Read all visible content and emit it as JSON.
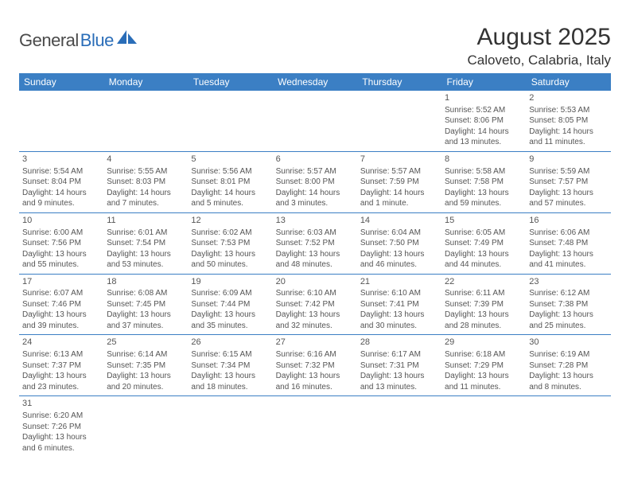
{
  "logo": {
    "text_general": "General",
    "text_blue": "Blue"
  },
  "header": {
    "month_title": "August 2025",
    "location": "Caloveto, Calabria, Italy"
  },
  "colors": {
    "header_bg": "#3b7fc4",
    "header_fg": "#ffffff",
    "rule": "#3b7fc4",
    "text": "#555555",
    "logo_gray": "#4a4a4a",
    "logo_blue": "#2a6db8"
  },
  "weekdays": [
    "Sunday",
    "Monday",
    "Tuesday",
    "Wednesday",
    "Thursday",
    "Friday",
    "Saturday"
  ],
  "weeks": [
    [
      null,
      null,
      null,
      null,
      null,
      {
        "d": "1",
        "sr": "Sunrise: 5:52 AM",
        "ss": "Sunset: 8:06 PM",
        "dl1": "Daylight: 14 hours",
        "dl2": "and 13 minutes."
      },
      {
        "d": "2",
        "sr": "Sunrise: 5:53 AM",
        "ss": "Sunset: 8:05 PM",
        "dl1": "Daylight: 14 hours",
        "dl2": "and 11 minutes."
      }
    ],
    [
      {
        "d": "3",
        "sr": "Sunrise: 5:54 AM",
        "ss": "Sunset: 8:04 PM",
        "dl1": "Daylight: 14 hours",
        "dl2": "and 9 minutes."
      },
      {
        "d": "4",
        "sr": "Sunrise: 5:55 AM",
        "ss": "Sunset: 8:03 PM",
        "dl1": "Daylight: 14 hours",
        "dl2": "and 7 minutes."
      },
      {
        "d": "5",
        "sr": "Sunrise: 5:56 AM",
        "ss": "Sunset: 8:01 PM",
        "dl1": "Daylight: 14 hours",
        "dl2": "and 5 minutes."
      },
      {
        "d": "6",
        "sr": "Sunrise: 5:57 AM",
        "ss": "Sunset: 8:00 PM",
        "dl1": "Daylight: 14 hours",
        "dl2": "and 3 minutes."
      },
      {
        "d": "7",
        "sr": "Sunrise: 5:57 AM",
        "ss": "Sunset: 7:59 PM",
        "dl1": "Daylight: 14 hours",
        "dl2": "and 1 minute."
      },
      {
        "d": "8",
        "sr": "Sunrise: 5:58 AM",
        "ss": "Sunset: 7:58 PM",
        "dl1": "Daylight: 13 hours",
        "dl2": "and 59 minutes."
      },
      {
        "d": "9",
        "sr": "Sunrise: 5:59 AM",
        "ss": "Sunset: 7:57 PM",
        "dl1": "Daylight: 13 hours",
        "dl2": "and 57 minutes."
      }
    ],
    [
      {
        "d": "10",
        "sr": "Sunrise: 6:00 AM",
        "ss": "Sunset: 7:56 PM",
        "dl1": "Daylight: 13 hours",
        "dl2": "and 55 minutes."
      },
      {
        "d": "11",
        "sr": "Sunrise: 6:01 AM",
        "ss": "Sunset: 7:54 PM",
        "dl1": "Daylight: 13 hours",
        "dl2": "and 53 minutes."
      },
      {
        "d": "12",
        "sr": "Sunrise: 6:02 AM",
        "ss": "Sunset: 7:53 PM",
        "dl1": "Daylight: 13 hours",
        "dl2": "and 50 minutes."
      },
      {
        "d": "13",
        "sr": "Sunrise: 6:03 AM",
        "ss": "Sunset: 7:52 PM",
        "dl1": "Daylight: 13 hours",
        "dl2": "and 48 minutes."
      },
      {
        "d": "14",
        "sr": "Sunrise: 6:04 AM",
        "ss": "Sunset: 7:50 PM",
        "dl1": "Daylight: 13 hours",
        "dl2": "and 46 minutes."
      },
      {
        "d": "15",
        "sr": "Sunrise: 6:05 AM",
        "ss": "Sunset: 7:49 PM",
        "dl1": "Daylight: 13 hours",
        "dl2": "and 44 minutes."
      },
      {
        "d": "16",
        "sr": "Sunrise: 6:06 AM",
        "ss": "Sunset: 7:48 PM",
        "dl1": "Daylight: 13 hours",
        "dl2": "and 41 minutes."
      }
    ],
    [
      {
        "d": "17",
        "sr": "Sunrise: 6:07 AM",
        "ss": "Sunset: 7:46 PM",
        "dl1": "Daylight: 13 hours",
        "dl2": "and 39 minutes."
      },
      {
        "d": "18",
        "sr": "Sunrise: 6:08 AM",
        "ss": "Sunset: 7:45 PM",
        "dl1": "Daylight: 13 hours",
        "dl2": "and 37 minutes."
      },
      {
        "d": "19",
        "sr": "Sunrise: 6:09 AM",
        "ss": "Sunset: 7:44 PM",
        "dl1": "Daylight: 13 hours",
        "dl2": "and 35 minutes."
      },
      {
        "d": "20",
        "sr": "Sunrise: 6:10 AM",
        "ss": "Sunset: 7:42 PM",
        "dl1": "Daylight: 13 hours",
        "dl2": "and 32 minutes."
      },
      {
        "d": "21",
        "sr": "Sunrise: 6:10 AM",
        "ss": "Sunset: 7:41 PM",
        "dl1": "Daylight: 13 hours",
        "dl2": "and 30 minutes."
      },
      {
        "d": "22",
        "sr": "Sunrise: 6:11 AM",
        "ss": "Sunset: 7:39 PM",
        "dl1": "Daylight: 13 hours",
        "dl2": "and 28 minutes."
      },
      {
        "d": "23",
        "sr": "Sunrise: 6:12 AM",
        "ss": "Sunset: 7:38 PM",
        "dl1": "Daylight: 13 hours",
        "dl2": "and 25 minutes."
      }
    ],
    [
      {
        "d": "24",
        "sr": "Sunrise: 6:13 AM",
        "ss": "Sunset: 7:37 PM",
        "dl1": "Daylight: 13 hours",
        "dl2": "and 23 minutes."
      },
      {
        "d": "25",
        "sr": "Sunrise: 6:14 AM",
        "ss": "Sunset: 7:35 PM",
        "dl1": "Daylight: 13 hours",
        "dl2": "and 20 minutes."
      },
      {
        "d": "26",
        "sr": "Sunrise: 6:15 AM",
        "ss": "Sunset: 7:34 PM",
        "dl1": "Daylight: 13 hours",
        "dl2": "and 18 minutes."
      },
      {
        "d": "27",
        "sr": "Sunrise: 6:16 AM",
        "ss": "Sunset: 7:32 PM",
        "dl1": "Daylight: 13 hours",
        "dl2": "and 16 minutes."
      },
      {
        "d": "28",
        "sr": "Sunrise: 6:17 AM",
        "ss": "Sunset: 7:31 PM",
        "dl1": "Daylight: 13 hours",
        "dl2": "and 13 minutes."
      },
      {
        "d": "29",
        "sr": "Sunrise: 6:18 AM",
        "ss": "Sunset: 7:29 PM",
        "dl1": "Daylight: 13 hours",
        "dl2": "and 11 minutes."
      },
      {
        "d": "30",
        "sr": "Sunrise: 6:19 AM",
        "ss": "Sunset: 7:28 PM",
        "dl1": "Daylight: 13 hours",
        "dl2": "and 8 minutes."
      }
    ],
    [
      {
        "d": "31",
        "sr": "Sunrise: 6:20 AM",
        "ss": "Sunset: 7:26 PM",
        "dl1": "Daylight: 13 hours",
        "dl2": "and 6 minutes."
      },
      null,
      null,
      null,
      null,
      null,
      null
    ]
  ]
}
